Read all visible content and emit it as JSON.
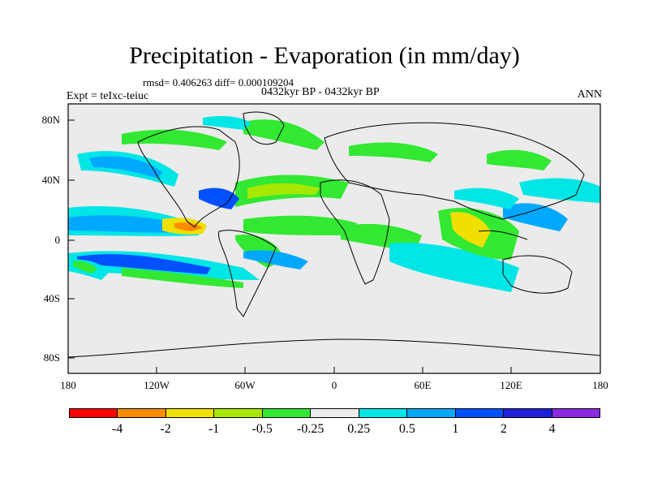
{
  "title": "Precipitation - Evaporation (in mm/day)",
  "stats": "rmsd= 0.406263 diff= 0.000109204",
  "experiment": "Expt = teIxc-teiuc",
  "period": "0432kyr BP - 0432kyr BP",
  "season": "ANN",
  "lat_labels": [
    "80N",
    "40N",
    "0",
    "40S",
    "80S"
  ],
  "lon_labels": [
    "180",
    "120W",
    "60W",
    "0",
    "60E",
    "120E",
    "180"
  ],
  "colorbar": {
    "colors": [
      "#ff0000",
      "#ff8c00",
      "#f0e000",
      "#a8e800",
      "#32e832",
      "#ebebeb",
      "#00e5e5",
      "#00a8ff",
      "#0050ff",
      "#2020d8",
      "#8a2be2"
    ],
    "labels": [
      "-4",
      "-2",
      "-1",
      "-0.5",
      "-0.25",
      "0.25",
      "0.5",
      "1",
      "2",
      "4"
    ]
  }
}
